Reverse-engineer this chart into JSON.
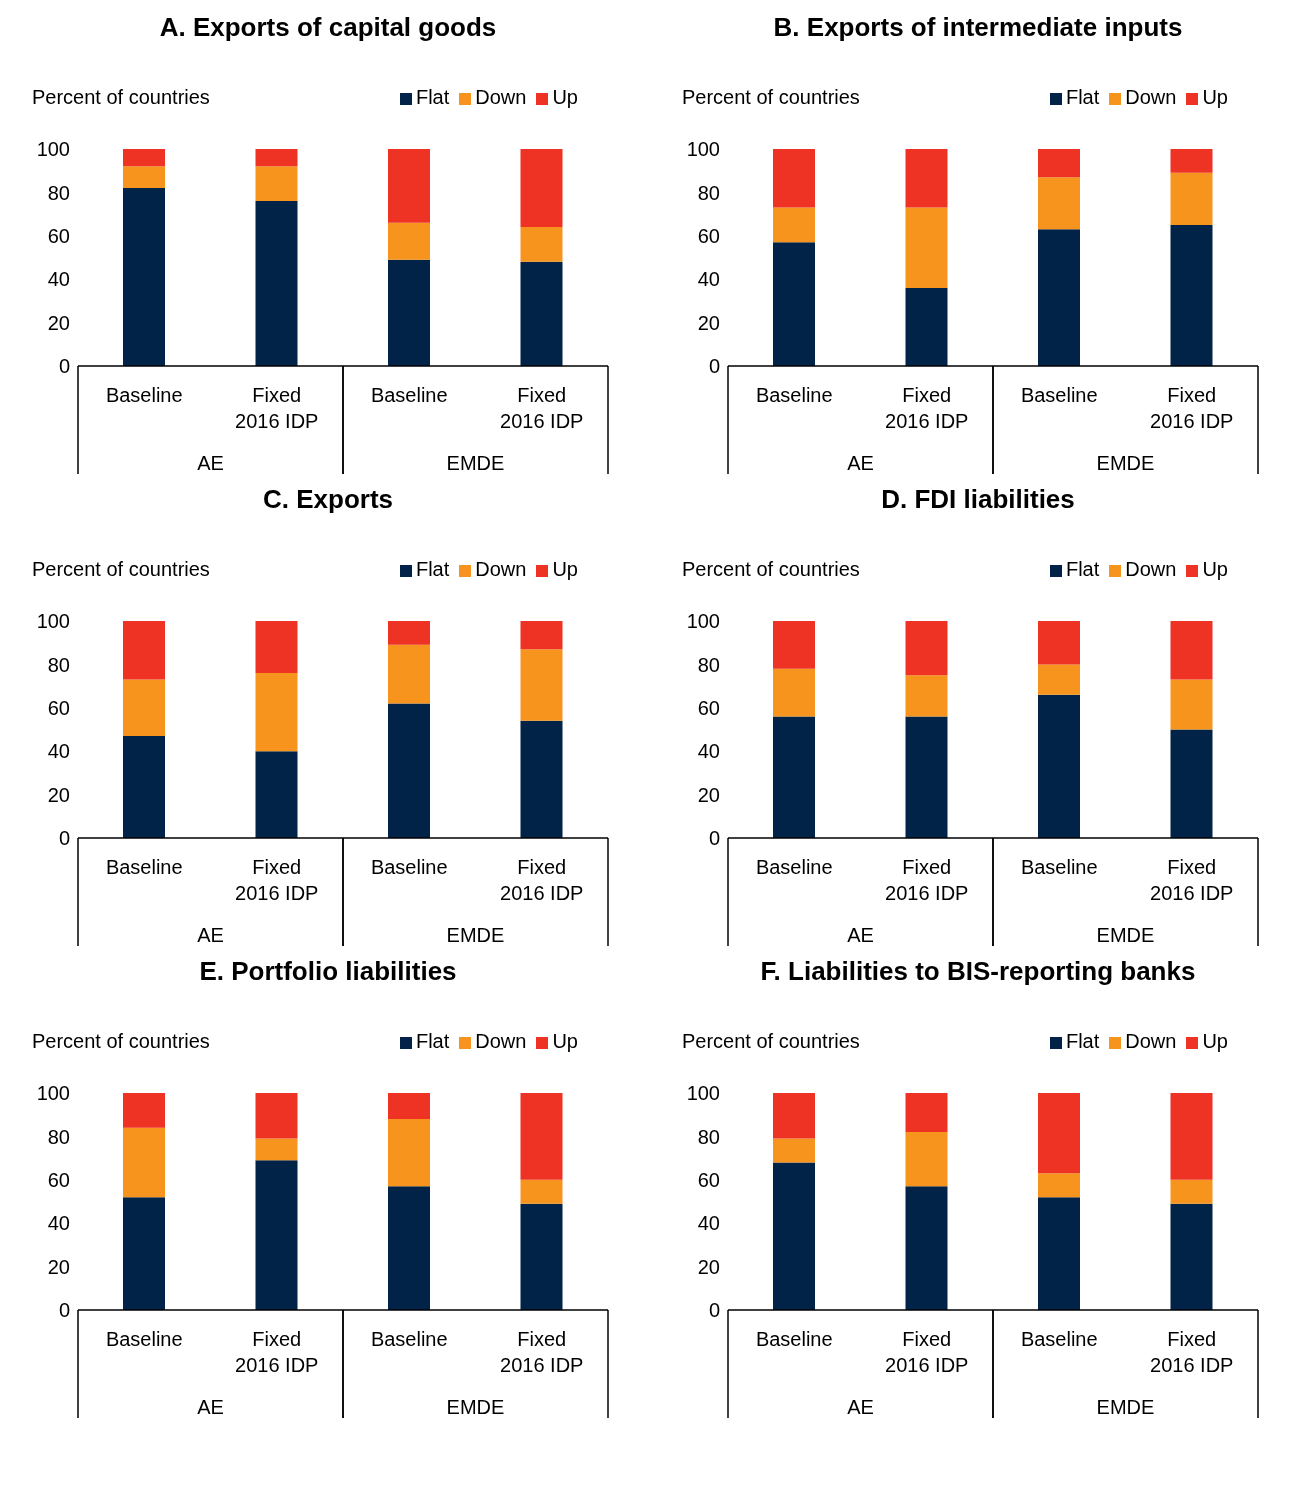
{
  "chart_data": [
    {
      "type": "bar",
      "title": "A. Exports of capital goods",
      "ylabel": "Percent of countries",
      "stacked": true,
      "legend": "top right",
      "grid": false,
      "categories": [
        "Baseline",
        "Fixed 2016 IDP",
        "Baseline",
        "Fixed 2016 IDP"
      ],
      "annotations": [
        "AE",
        "EMDE"
      ],
      "ylim": [
        0,
        100
      ],
      "yticks": [
        0,
        20,
        40,
        60,
        80,
        100
      ],
      "series": [
        {
          "name": "Flat",
          "color": "#002347",
          "values": [
            82,
            76,
            49,
            48
          ]
        },
        {
          "name": "Down",
          "color": "#f7941d",
          "values": [
            10,
            16,
            17,
            16
          ]
        },
        {
          "name": "Up",
          "color": "#ee3224",
          "values": [
            8,
            8,
            34,
            36
          ]
        }
      ]
    },
    {
      "type": "bar",
      "title": "B. Exports of intermediate inputs",
      "ylabel": "Percent of countries",
      "stacked": true,
      "legend": "top right",
      "grid": false,
      "categories": [
        "Baseline",
        "Fixed 2016 IDP",
        "Baseline",
        "Fixed 2016 IDP"
      ],
      "annotations": [
        "AE",
        "EMDE"
      ],
      "ylim": [
        0,
        100
      ],
      "yticks": [
        0,
        20,
        40,
        60,
        80,
        100
      ],
      "series": [
        {
          "name": "Flat",
          "color": "#002347",
          "values": [
            57,
            36,
            63,
            65
          ]
        },
        {
          "name": "Down",
          "color": "#f7941d",
          "values": [
            16,
            37,
            24,
            24
          ]
        },
        {
          "name": "Up",
          "color": "#ee3224",
          "values": [
            27,
            27,
            13,
            11
          ]
        }
      ]
    },
    {
      "type": "bar",
      "title": "C. Exports",
      "ylabel": "Percent of countries",
      "stacked": true,
      "legend": "top right",
      "grid": false,
      "categories": [
        "Baseline",
        "Fixed 2016 IDP",
        "Baseline",
        "Fixed 2016 IDP"
      ],
      "annotations": [
        "AE",
        "EMDE"
      ],
      "ylim": [
        0,
        100
      ],
      "yticks": [
        0,
        20,
        40,
        60,
        80,
        100
      ],
      "series": [
        {
          "name": "Flat",
          "color": "#002347",
          "values": [
            47,
            40,
            62,
            54
          ]
        },
        {
          "name": "Down",
          "color": "#f7941d",
          "values": [
            26,
            36,
            27,
            33
          ]
        },
        {
          "name": "Up",
          "color": "#ee3224",
          "values": [
            27,
            24,
            11,
            13
          ]
        }
      ]
    },
    {
      "type": "bar",
      "title": "D. FDI liabilities",
      "ylabel": "Percent of countries",
      "stacked": true,
      "legend": "top right",
      "grid": false,
      "categories": [
        "Baseline",
        "Fixed 2016 IDP",
        "Baseline",
        "Fixed 2016 IDP"
      ],
      "annotations": [
        "AE",
        "EMDE"
      ],
      "ylim": [
        0,
        100
      ],
      "yticks": [
        0,
        20,
        40,
        60,
        80,
        100
      ],
      "series": [
        {
          "name": "Flat",
          "color": "#002347",
          "values": [
            56,
            56,
            66,
            50
          ]
        },
        {
          "name": "Down",
          "color": "#f7941d",
          "values": [
            22,
            19,
            14,
            23
          ]
        },
        {
          "name": "Up",
          "color": "#ee3224",
          "values": [
            22,
            25,
            20,
            27
          ]
        }
      ]
    },
    {
      "type": "bar",
      "title": "E. Portfolio liabilities",
      "ylabel": "Percent of countries",
      "stacked": true,
      "legend": "top right",
      "grid": false,
      "categories": [
        "Baseline",
        "Fixed 2016 IDP",
        "Baseline",
        "Fixed 2016 IDP"
      ],
      "annotations": [
        "AE",
        "EMDE"
      ],
      "ylim": [
        0,
        100
      ],
      "yticks": [
        0,
        20,
        40,
        60,
        80,
        100
      ],
      "series": [
        {
          "name": "Flat",
          "color": "#002347",
          "values": [
            52,
            69,
            57,
            49
          ]
        },
        {
          "name": "Down",
          "color": "#f7941d",
          "values": [
            32,
            10,
            31,
            11
          ]
        },
        {
          "name": "Up",
          "color": "#ee3224",
          "values": [
            16,
            21,
            12,
            40
          ]
        }
      ]
    },
    {
      "type": "bar",
      "title": "F. Liabilities to BIS-reporting banks",
      "ylabel": "Percent of countries",
      "stacked": true,
      "legend": "top right",
      "grid": false,
      "categories": [
        "Baseline",
        "Fixed 2016 IDP",
        "Baseline",
        "Fixed 2016 IDP"
      ],
      "annotations": [
        "AE",
        "EMDE"
      ],
      "ylim": [
        0,
        100
      ],
      "yticks": [
        0,
        20,
        40,
        60,
        80,
        100
      ],
      "series": [
        {
          "name": "Flat",
          "color": "#002347",
          "values": [
            68,
            57,
            52,
            49
          ]
        },
        {
          "name": "Down",
          "color": "#f7941d",
          "values": [
            11,
            25,
            11,
            11
          ]
        },
        {
          "name": "Up",
          "color": "#ee3224",
          "values": [
            21,
            18,
            37,
            40
          ]
        }
      ]
    }
  ]
}
